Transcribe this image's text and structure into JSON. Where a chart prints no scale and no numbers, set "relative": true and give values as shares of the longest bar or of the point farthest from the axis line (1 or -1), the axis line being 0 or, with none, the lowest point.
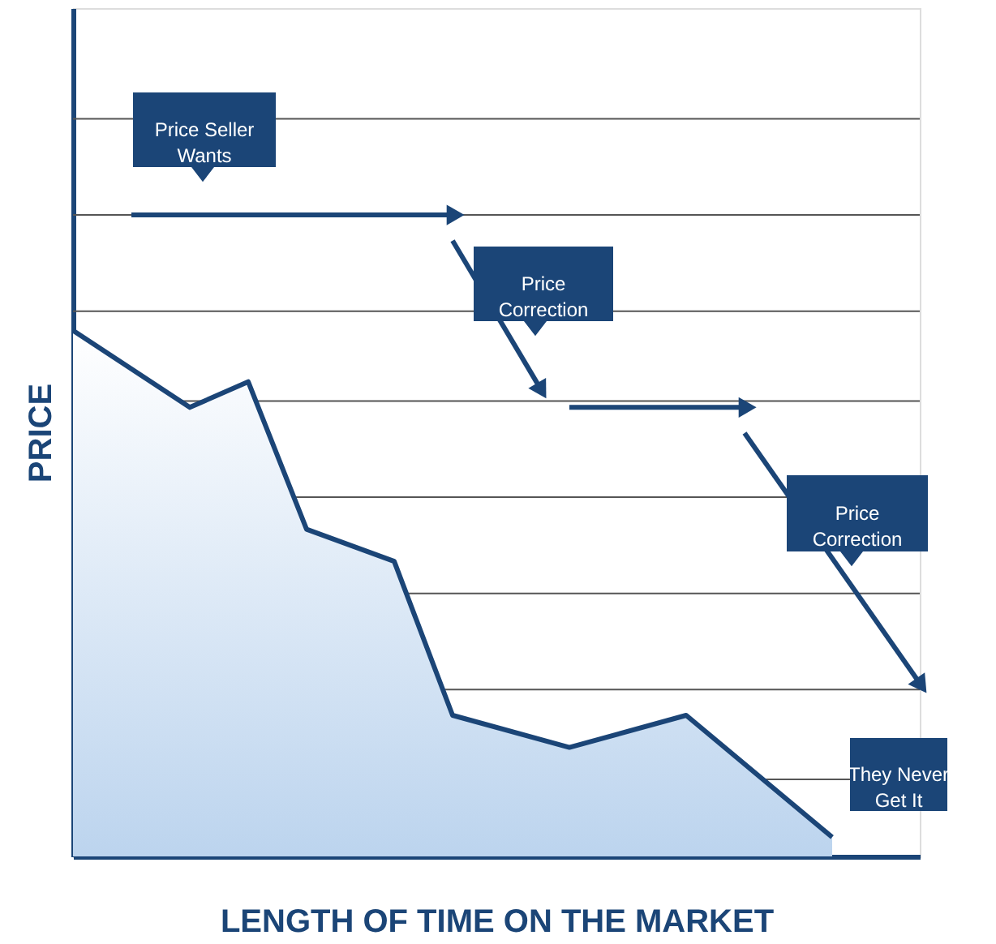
{
  "chart_data": {
    "type": "line",
    "relative": true,
    "xlabel": "LENGTH OF TIME ON THE MARKET",
    "ylabel": "PRICE",
    "categories": [
      null,
      null,
      null,
      null,
      null,
      null,
      null,
      null,
      null,
      null,
      null,
      null,
      null,
      null,
      null,
      null,
      null,
      null,
      null,
      null,
      null,
      null,
      null,
      null,
      null,
      null,
      null,
      null,
      null,
      null
    ],
    "series": [
      {
        "type": "area",
        "color": "#1b4577",
        "values": [
          0.82,
          null,
          null,
          null,
          0.7,
          null,
          0.74,
          null,
          0.51,
          null,
          null,
          0.46,
          null,
          0.22,
          null,
          null,
          null,
          0.17,
          null,
          null,
          null,
          0.22,
          null,
          null,
          null,
          null,
          0.03,
          null,
          null,
          null
        ]
      },
      {
        "type": "line",
        "color": "#1b4577",
        "values": [
          null,
          null,
          1.0,
          null,
          null,
          null,
          null,
          null,
          null,
          null,
          null,
          null,
          null,
          1.0,
          null,
          null,
          null,
          null,
          null,
          null,
          null,
          null,
          null,
          null,
          null,
          null,
          null,
          null,
          null,
          null
        ]
      },
      {
        "type": "line",
        "color": "#1b4577",
        "values": [
          null,
          null,
          null,
          null,
          null,
          null,
          null,
          null,
          null,
          null,
          null,
          null,
          null,
          0.96,
          null,
          null,
          0.73,
          null,
          null,
          null,
          null,
          null,
          null,
          null,
          null,
          null,
          null,
          null,
          null,
          null
        ]
      },
      {
        "type": "line",
        "color": "#1b4577",
        "values": [
          null,
          null,
          null,
          null,
          null,
          null,
          null,
          null,
          null,
          null,
          null,
          null,
          null,
          null,
          null,
          null,
          null,
          0.7,
          null,
          null,
          null,
          null,
          null,
          0.7,
          null,
          null,
          null,
          null,
          null,
          null
        ]
      },
      {
        "type": "line",
        "color": "#1b4577",
        "values": [
          null,
          null,
          null,
          null,
          null,
          null,
          null,
          null,
          null,
          null,
          null,
          null,
          null,
          null,
          null,
          null,
          null,
          null,
          null,
          null,
          null,
          null,
          null,
          0.66,
          null,
          null,
          null,
          null,
          null,
          0.27
        ]
      }
    ],
    "ref_lines": [
      {
        "axis": "y",
        "value": 1.15,
        "color": "#555555"
      },
      {
        "axis": "y",
        "value": 1.0,
        "color": "#555555"
      },
      {
        "axis": "y",
        "value": 0.85,
        "color": "#555555"
      },
      {
        "axis": "y",
        "value": 0.71,
        "color": "#555555"
      },
      {
        "axis": "y",
        "value": 0.56,
        "color": "#555555"
      },
      {
        "axis": "y",
        "value": 0.41,
        "color": "#555555"
      },
      {
        "axis": "y",
        "value": 0.26,
        "color": "#555555"
      },
      {
        "axis": "y",
        "value": 0.12,
        "color": "#555555"
      }
    ],
    "annotations": [
      "Price Seller\nWants",
      "Price\nCorrection",
      "Price\nCorrection",
      "They Never\nGet It"
    ]
  }
}
